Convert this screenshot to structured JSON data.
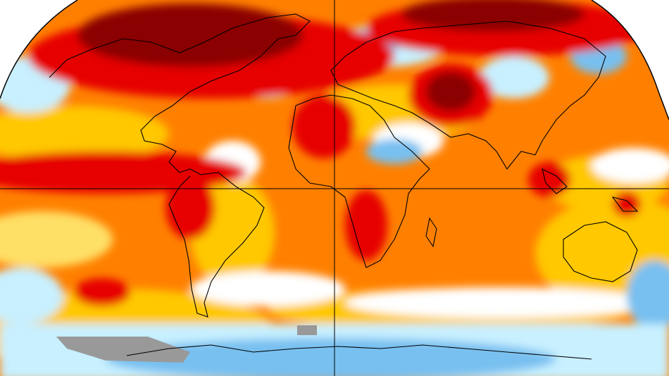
{
  "map": {
    "projection": "robinson",
    "kind": "global temperature anomaly",
    "colors": {
      "extreme_warm": "#8b0000",
      "very_warm": "#e60000",
      "warm": "#ff8000",
      "mild_warm": "#ffc800",
      "slight_warm": "#ffe066",
      "neutral": "#ffffff",
      "slight_cool": "#c8f0ff",
      "cool": "#78c0f0",
      "very_cool": "#2a80d8",
      "no_data": "#999999",
      "coastline": "#000000",
      "graticule": "#000000"
    }
  }
}
